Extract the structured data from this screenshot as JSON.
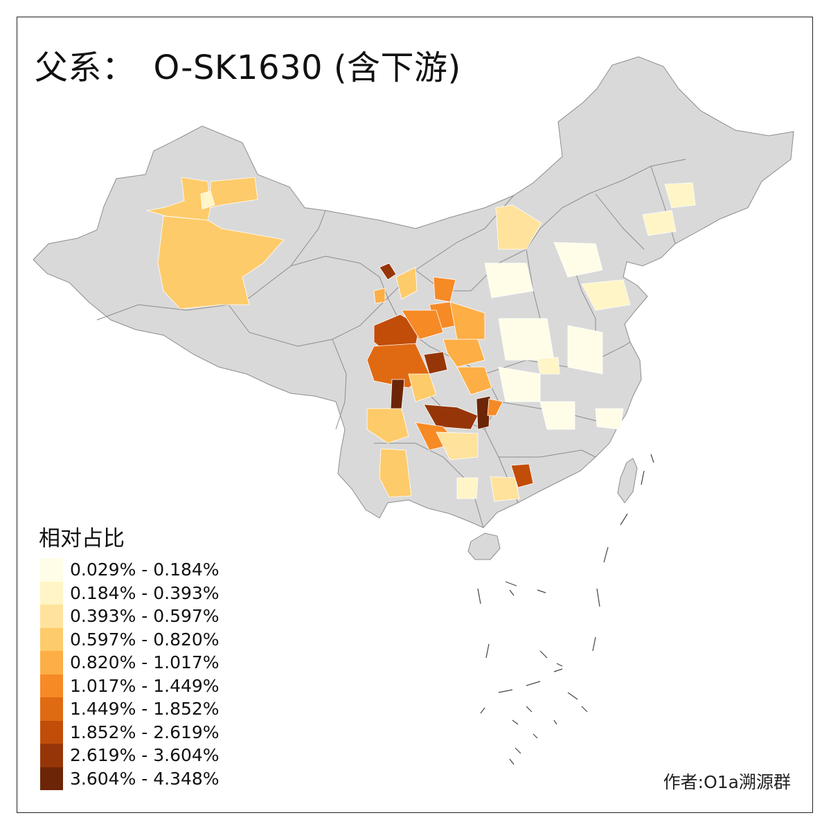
{
  "title_main": "父系：",
  "title_sub": "O-SK1630 (含下游)",
  "legend": {
    "title": "相对占比",
    "items": [
      {
        "label": "0.029% - 0.184%",
        "color": "#FFFDE7"
      },
      {
        "label": "0.184% - 0.393%",
        "color": "#FFF5C6"
      },
      {
        "label": "0.393% - 0.597%",
        "color": "#FFE29C"
      },
      {
        "label": "0.597% - 0.820%",
        "color": "#FECB6A"
      },
      {
        "label": "0.820% - 1.017%",
        "color": "#FDAE45"
      },
      {
        "label": "1.017% - 1.449%",
        "color": "#F68A25"
      },
      {
        "label": "1.449% - 1.852%",
        "color": "#E06A12"
      },
      {
        "label": "1.852% - 2.619%",
        "color": "#C14D09"
      },
      {
        "label": "2.619% - 3.604%",
        "color": "#963608"
      },
      {
        "label": "3.604% - 4.348%",
        "color": "#6C2507"
      }
    ]
  },
  "credit": "作者:O1a溯源群",
  "base_color": "#D9D9D9",
  "border_color": "#8C8C8C"
}
